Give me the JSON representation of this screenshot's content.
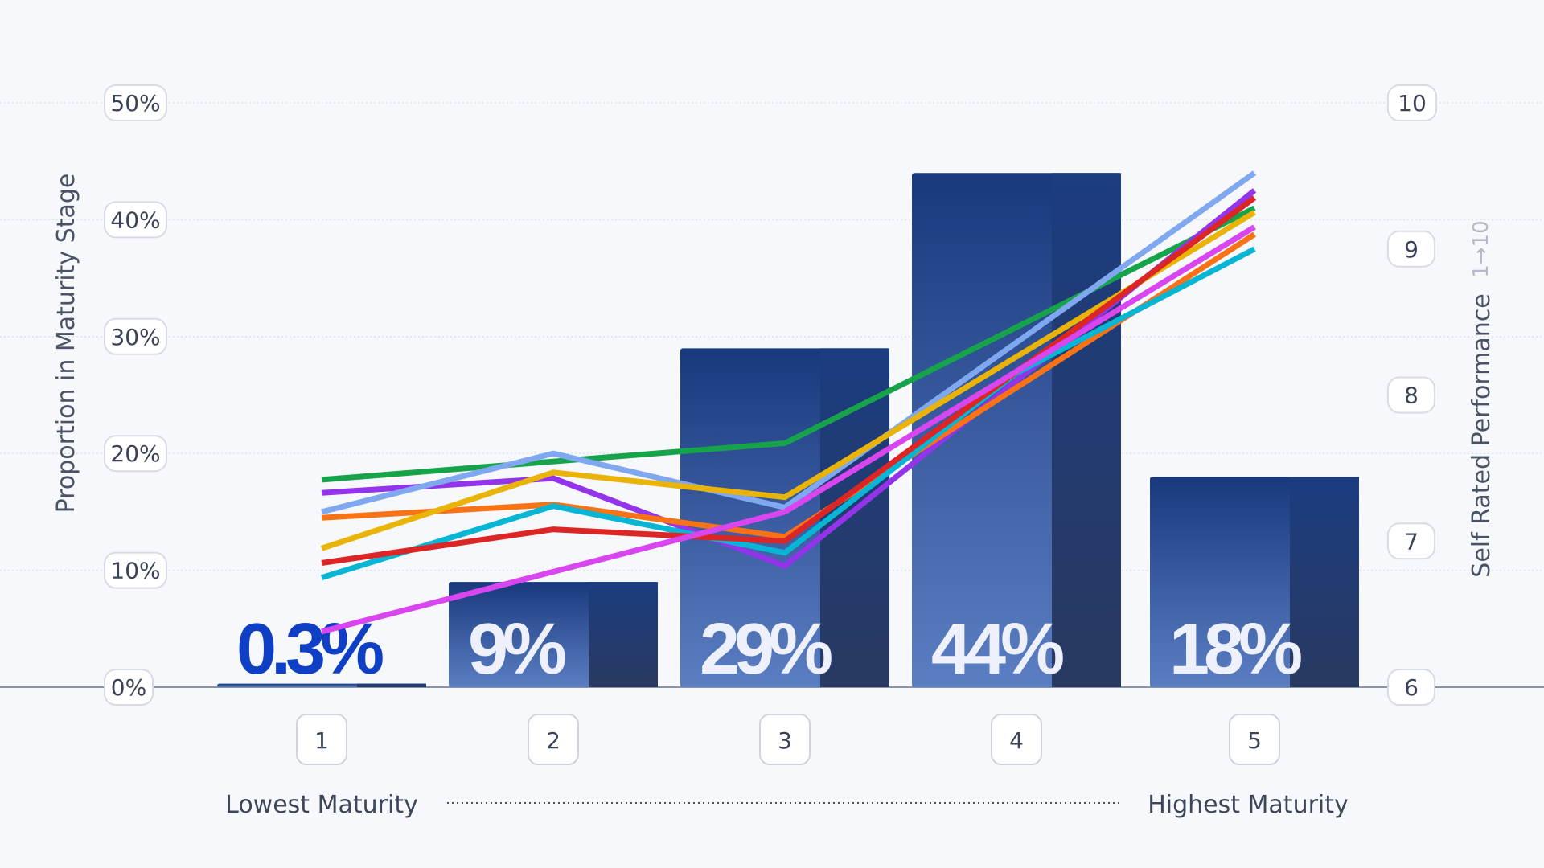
{
  "chart_data": {
    "type": "bar",
    "categories": [
      "1",
      "2",
      "3",
      "4",
      "5"
    ],
    "values": [
      0.3,
      9,
      29,
      44,
      18
    ],
    "value_labels": [
      "0.3%",
      "9%",
      "29%",
      "44%",
      "18%"
    ],
    "ylabel": "Proportion in Maturity Stage",
    "ylim": [
      0,
      50
    ],
    "y_ticks": [
      "0%",
      "10%",
      "20%",
      "30%",
      "40%",
      "50%"
    ],
    "y2label": "Self Rated Performance",
    "y2_scale_note": "1→10",
    "y2lim": [
      6,
      10
    ],
    "y2_ticks": [
      "6",
      "7",
      "8",
      "9",
      "10"
    ],
    "x_left_label": "Lowest Maturity",
    "x_right_label": "Highest Maturity",
    "grid": true,
    "series": [
      {
        "name": "green",
        "color": "#16a34a",
        "values": [
          7.42,
          null,
          7.67,
          null,
          9.28
        ]
      },
      {
        "name": "purple",
        "color": "#9333ea",
        "values": [
          7.33,
          7.43,
          6.83,
          null,
          9.4
        ]
      },
      {
        "name": "lightblue",
        "color": "#7fa8f0",
        "values": [
          7.2,
          7.6,
          7.23,
          null,
          9.52
        ]
      },
      {
        "name": "orange",
        "color": "#f97316",
        "values": [
          7.16,
          7.25,
          7.03,
          null,
          9.1
        ]
      },
      {
        "name": "yellow",
        "color": "#eab308",
        "values": [
          6.95,
          7.47,
          7.3,
          null,
          9.25
        ]
      },
      {
        "name": "teal",
        "color": "#06b6d4",
        "values": [
          6.75,
          7.24,
          6.92,
          8.15,
          9.0
        ]
      },
      {
        "name": "red",
        "color": "#dc2626",
        "values": [
          6.85,
          7.08,
          7.0,
          null,
          9.35
        ]
      },
      {
        "name": "magenta",
        "color": "#d946ef",
        "values": [
          6.38,
          null,
          7.2,
          null,
          9.15
        ]
      }
    ]
  },
  "colors": {
    "bar_dark": "#19397d",
    "bar_light": "#5b7ec2",
    "bar_shadow_top": "#1c3d80",
    "bar_shadow_bottom": "#26365c",
    "first_label": "#0e3fc4",
    "other_labels": "#eef1fb"
  }
}
